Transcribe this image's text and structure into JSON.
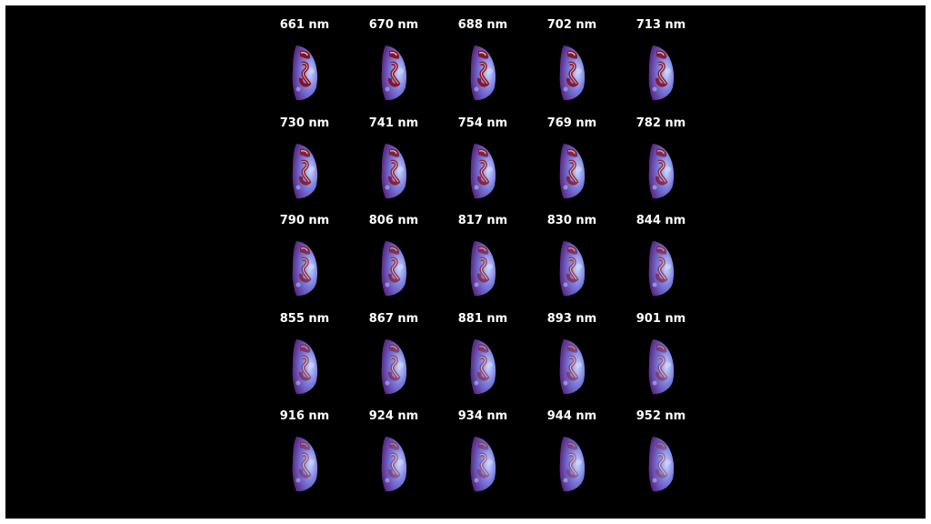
{
  "panels": [
    {
      "label": "661 nm"
    },
    {
      "label": "670 nm"
    },
    {
      "label": "688 nm"
    },
    {
      "label": "702 nm"
    },
    {
      "label": "713 nm"
    },
    {
      "label": "730 nm"
    },
    {
      "label": "741 nm"
    },
    {
      "label": "754 nm"
    },
    {
      "label": "769 nm"
    },
    {
      "label": "782 nm"
    },
    {
      "label": "790 nm"
    },
    {
      "label": "806 nm"
    },
    {
      "label": "817 nm"
    },
    {
      "label": "830 nm"
    },
    {
      "label": "844 nm"
    },
    {
      "label": "855 nm"
    },
    {
      "label": "867 nm"
    },
    {
      "label": "881 nm"
    },
    {
      "label": "893 nm"
    },
    {
      "label": "901 nm"
    },
    {
      "label": "916 nm"
    },
    {
      "label": "924 nm"
    },
    {
      "label": "934 nm"
    },
    {
      "label": "944 nm"
    },
    {
      "label": "952 nm"
    }
  ],
  "colors": {
    "background": "#000000",
    "border": "#ffffff",
    "label": "#ffffff",
    "disk_outer": "#5a2a8a",
    "disk_mid": "#7a7fe0",
    "disk_light": "#c8d6ff",
    "feature_hot": "#8a1020",
    "feature_highlight": "#f0e0d0"
  }
}
